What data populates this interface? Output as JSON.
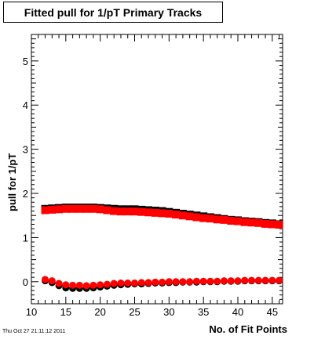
{
  "timestamp": "Thu Oct 27 21:11:12 2011",
  "colors": {
    "series_black": "#000000",
    "series_red": "#ff0000",
    "axis": "#000000"
  },
  "chart_data": {
    "type": "scatter",
    "title": "Fitted pull for 1/pT Primary Tracks",
    "xlabel": "No. of Fit Points",
    "ylabel": "pull for 1/pT",
    "xlim": [
      10,
      46.5
    ],
    "ylim": [
      -0.5,
      5.6
    ],
    "xticks": [
      10,
      15,
      20,
      25,
      30,
      35,
      40,
      45
    ],
    "yticks": [
      0,
      1,
      2,
      3,
      4,
      5
    ],
    "grid": false,
    "series": [
      {
        "marker": "square",
        "color": "#000000",
        "points": [
          [
            12,
            1.65
          ],
          [
            13,
            1.66
          ],
          [
            14,
            1.67
          ],
          [
            15,
            1.68
          ],
          [
            16,
            1.68
          ],
          [
            17,
            1.68
          ],
          [
            18,
            1.68
          ],
          [
            19,
            1.68
          ],
          [
            20,
            1.67
          ],
          [
            21,
            1.66
          ],
          [
            22,
            1.65
          ],
          [
            23,
            1.64
          ],
          [
            24,
            1.64
          ],
          [
            25,
            1.64
          ],
          [
            26,
            1.63
          ],
          [
            27,
            1.62
          ],
          [
            28,
            1.61
          ],
          [
            29,
            1.6
          ],
          [
            30,
            1.58
          ],
          [
            31,
            1.56
          ],
          [
            32,
            1.54
          ],
          [
            33,
            1.52
          ],
          [
            34,
            1.5
          ],
          [
            35,
            1.48
          ],
          [
            36,
            1.46
          ],
          [
            37,
            1.44
          ],
          [
            38,
            1.42
          ],
          [
            39,
            1.4
          ],
          [
            40,
            1.39
          ],
          [
            41,
            1.37
          ],
          [
            42,
            1.36
          ],
          [
            43,
            1.35
          ],
          [
            44,
            1.33
          ],
          [
            45,
            1.32
          ],
          [
            46,
            1.3
          ]
        ]
      },
      {
        "marker": "square",
        "color": "#ff0000",
        "points": [
          [
            12,
            1.62
          ],
          [
            13,
            1.63
          ],
          [
            14,
            1.64
          ],
          [
            15,
            1.65
          ],
          [
            16,
            1.65
          ],
          [
            17,
            1.65
          ],
          [
            18,
            1.65
          ],
          [
            19,
            1.65
          ],
          [
            20,
            1.64
          ],
          [
            21,
            1.62
          ],
          [
            22,
            1.6
          ],
          [
            23,
            1.59
          ],
          [
            24,
            1.59
          ],
          [
            25,
            1.59
          ],
          [
            26,
            1.58
          ],
          [
            27,
            1.57
          ],
          [
            28,
            1.56
          ],
          [
            29,
            1.55
          ],
          [
            30,
            1.54
          ],
          [
            31,
            1.52
          ],
          [
            32,
            1.5
          ],
          [
            33,
            1.48
          ],
          [
            34,
            1.46
          ],
          [
            35,
            1.44
          ],
          [
            36,
            1.43
          ],
          [
            37,
            1.41
          ],
          [
            38,
            1.4
          ],
          [
            39,
            1.38
          ],
          [
            40,
            1.37
          ],
          [
            41,
            1.35
          ],
          [
            42,
            1.34
          ],
          [
            43,
            1.33
          ],
          [
            44,
            1.31
          ],
          [
            45,
            1.3
          ],
          [
            46,
            1.29
          ]
        ]
      },
      {
        "marker": "circle",
        "color": "#000000",
        "points": [
          [
            12,
            0.02
          ],
          [
            13,
            -0.02
          ],
          [
            14,
            -0.09
          ],
          [
            15,
            -0.14
          ],
          [
            16,
            -0.15
          ],
          [
            17,
            -0.15
          ],
          [
            18,
            -0.15
          ],
          [
            19,
            -0.14
          ],
          [
            20,
            -0.12
          ],
          [
            21,
            -0.1
          ],
          [
            22,
            -0.08
          ],
          [
            23,
            -0.07
          ],
          [
            24,
            -0.06
          ],
          [
            25,
            -0.05
          ],
          [
            26,
            -0.05
          ],
          [
            27,
            -0.04
          ],
          [
            28,
            -0.03
          ],
          [
            29,
            -0.03
          ],
          [
            30,
            -0.02
          ],
          [
            31,
            -0.02
          ],
          [
            32,
            -0.01
          ],
          [
            33,
            -0.01
          ],
          [
            34,
            -0.01
          ],
          [
            35,
            0.0
          ],
          [
            36,
            0.0
          ],
          [
            37,
            0.0
          ],
          [
            38,
            0.01
          ],
          [
            39,
            0.01
          ],
          [
            40,
            0.01
          ],
          [
            41,
            0.02
          ],
          [
            42,
            0.02
          ],
          [
            43,
            0.02
          ],
          [
            44,
            0.02
          ],
          [
            45,
            0.02
          ],
          [
            46,
            0.02
          ]
        ]
      },
      {
        "marker": "circle",
        "color": "#ff0000",
        "points": [
          [
            12,
            0.05
          ],
          [
            13,
            0.02
          ],
          [
            14,
            -0.04
          ],
          [
            15,
            -0.07
          ],
          [
            16,
            -0.08
          ],
          [
            17,
            -0.08
          ],
          [
            18,
            -0.09
          ],
          [
            19,
            -0.08
          ],
          [
            20,
            -0.07
          ],
          [
            21,
            -0.06
          ],
          [
            22,
            -0.04
          ],
          [
            23,
            -0.03
          ],
          [
            24,
            -0.03
          ],
          [
            25,
            -0.03
          ],
          [
            26,
            -0.02
          ],
          [
            27,
            -0.02
          ],
          [
            28,
            -0.01
          ],
          [
            29,
            -0.01
          ],
          [
            30,
            0.0
          ],
          [
            31,
            0.0
          ],
          [
            32,
            0.0
          ],
          [
            33,
            0.0
          ],
          [
            34,
            0.01
          ],
          [
            35,
            0.01
          ],
          [
            36,
            0.01
          ],
          [
            37,
            0.01
          ],
          [
            38,
            0.02
          ],
          [
            39,
            0.02
          ],
          [
            40,
            0.02
          ],
          [
            41,
            0.03
          ],
          [
            42,
            0.03
          ],
          [
            43,
            0.03
          ],
          [
            44,
            0.03
          ],
          [
            45,
            0.03
          ],
          [
            46,
            0.03
          ]
        ]
      }
    ]
  }
}
